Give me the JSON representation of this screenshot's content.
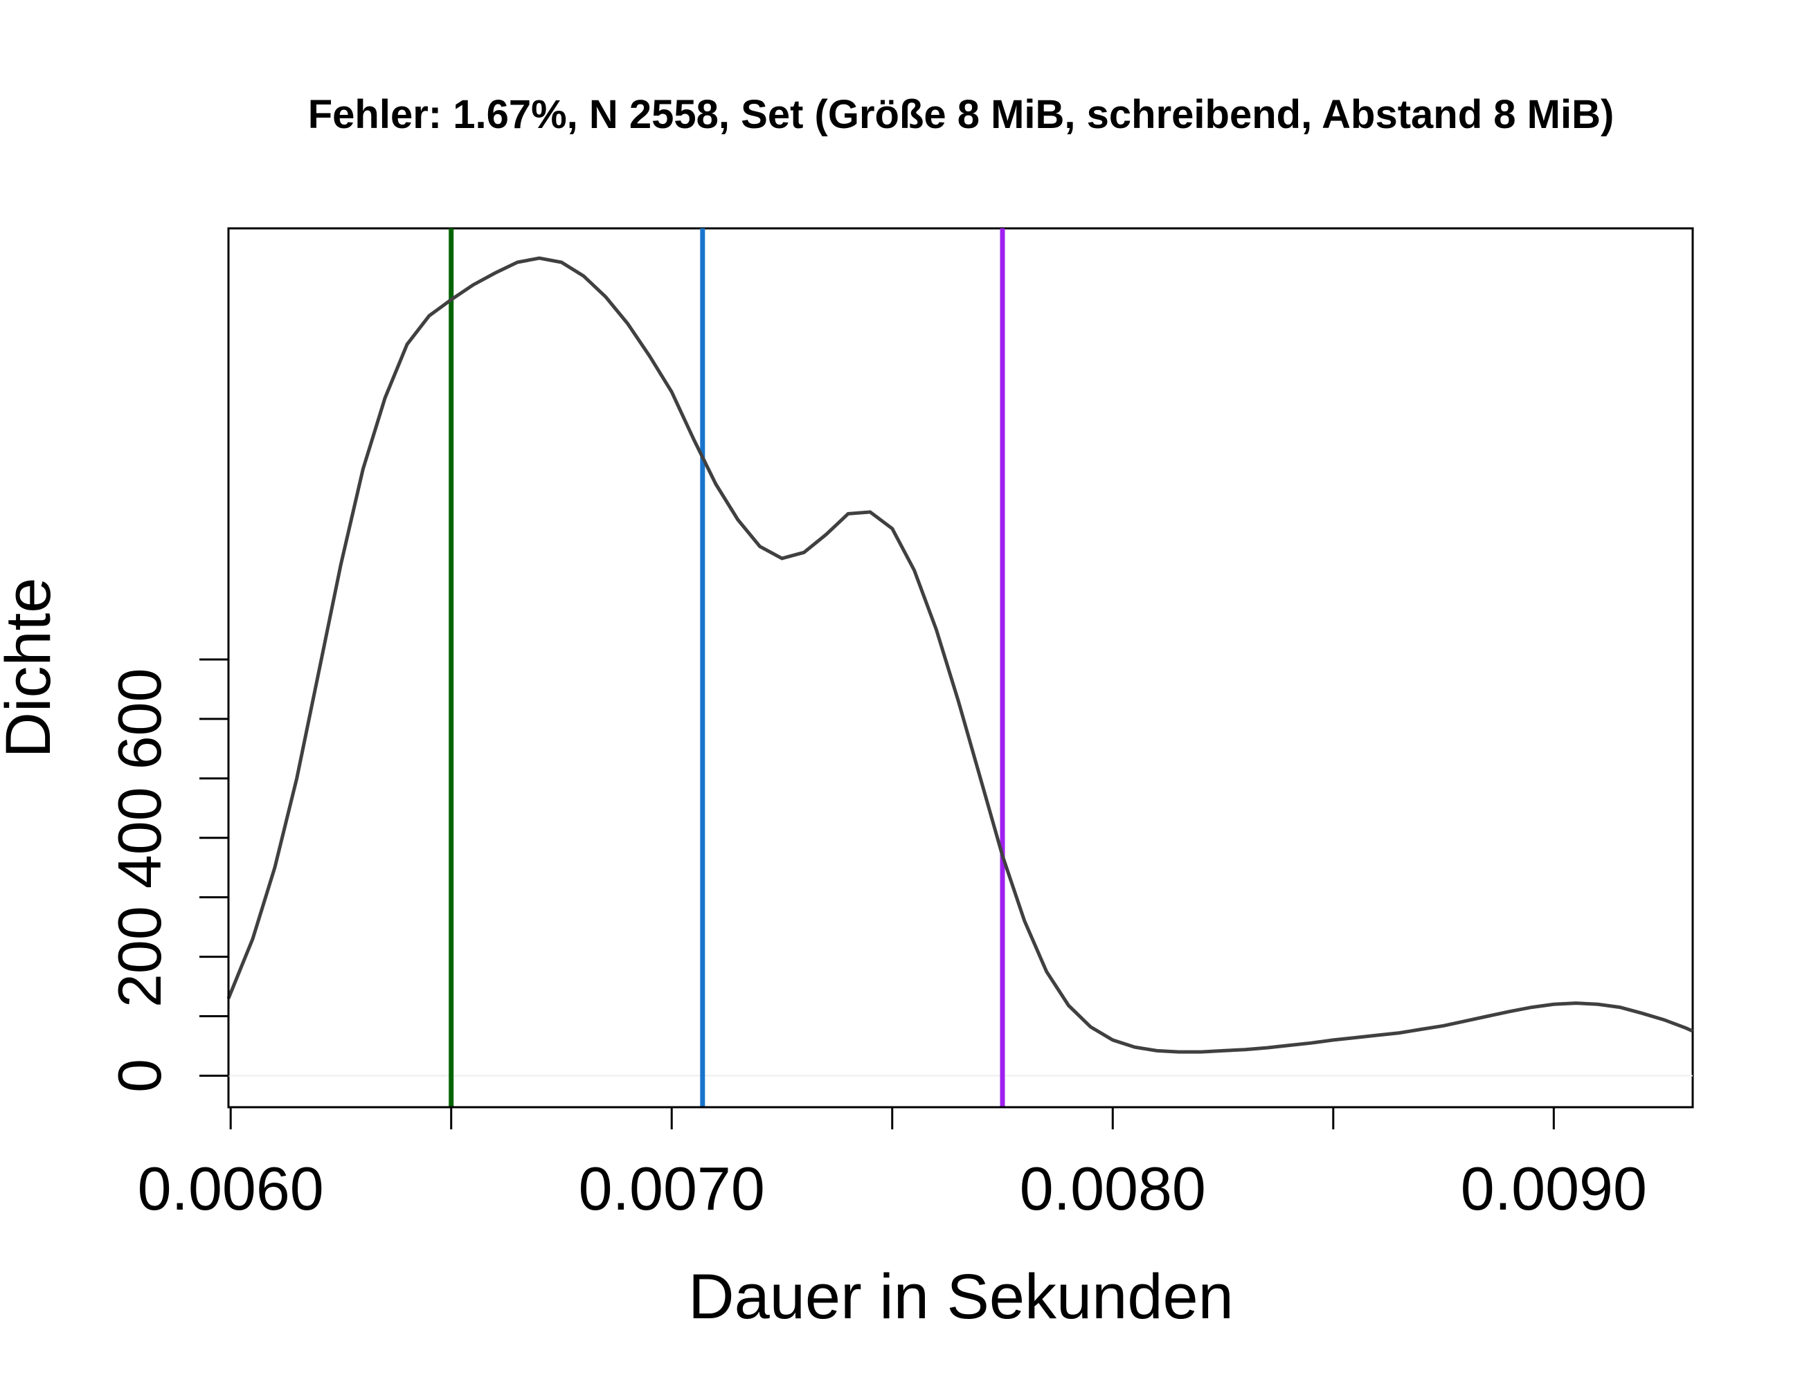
{
  "chart_data": {
    "type": "line",
    "title": "Fehler: 1.67%, N 2558, Set (Größe 8 MiB, schreibend, Abstand 8 MiB)",
    "xlabel": "Dauer in Sekunden",
    "ylabel": "Dichte",
    "xlim": [
      0.005995,
      0.009315
    ],
    "ylim": [
      -53,
      1425
    ],
    "x_ticks": [
      0.006,
      0.0065,
      0.007,
      0.0075,
      0.008,
      0.0085,
      0.009
    ],
    "x_tick_labels": [
      "0.0060",
      "",
      "0.0070",
      "",
      "0.0080",
      "",
      "0.0090"
    ],
    "y_ticks": [
      0,
      100,
      200,
      300,
      400,
      500,
      600,
      700
    ],
    "y_tick_labels": [
      "0",
      "",
      "200",
      "",
      "400",
      "",
      "600",
      ""
    ],
    "grid": false,
    "series": [
      {
        "color": "#404040",
        "x": [
          0.005995,
          0.00605,
          0.0061,
          0.00615,
          0.0062,
          0.00625,
          0.0063,
          0.00635,
          0.0064,
          0.00645,
          0.0065,
          0.00655,
          0.0066,
          0.00665,
          0.0067,
          0.00675,
          0.0068,
          0.00685,
          0.0069,
          0.00695,
          0.007,
          0.00705,
          0.0071,
          0.00715,
          0.0072,
          0.00725,
          0.0073,
          0.00735,
          0.0074,
          0.00745,
          0.0075,
          0.00755,
          0.0076,
          0.00765,
          0.0077,
          0.00775,
          0.0078,
          0.00785,
          0.0079,
          0.00795,
          0.008,
          0.00805,
          0.0081,
          0.00815,
          0.0082,
          0.00825,
          0.0083,
          0.00835,
          0.0084,
          0.00845,
          0.0085,
          0.00855,
          0.0086,
          0.00865,
          0.0087,
          0.00875,
          0.0088,
          0.00885,
          0.0089,
          0.00895,
          0.009,
          0.00905,
          0.0091,
          0.00915,
          0.0092,
          0.00925,
          0.0093,
          0.009315
        ],
        "y": [
          130,
          230,
          350,
          500,
          680,
          860,
          1020,
          1140,
          1230,
          1278,
          1305,
          1330,
          1350,
          1368,
          1375,
          1368,
          1345,
          1310,
          1265,
          1210,
          1150,
          1070,
          995,
          935,
          890,
          870,
          880,
          910,
          945,
          948,
          920,
          850,
          750,
          630,
          500,
          370,
          260,
          175,
          118,
          82,
          60,
          48,
          42,
          40,
          40,
          42,
          44,
          47,
          51,
          55,
          60,
          64,
          68,
          72,
          78,
          84,
          92,
          100,
          108,
          115,
          120,
          122,
          120,
          115,
          105,
          94,
          80,
          75
        ]
      }
    ],
    "vlines": [
      {
        "x": 0.0065,
        "color": "#006400"
      },
      {
        "x": 0.00707,
        "color": "#1874CD"
      },
      {
        "x": 0.00775,
        "color": "#A020F0"
      }
    ],
    "hline": {
      "y": 0,
      "color": "#eeeeee"
    }
  }
}
